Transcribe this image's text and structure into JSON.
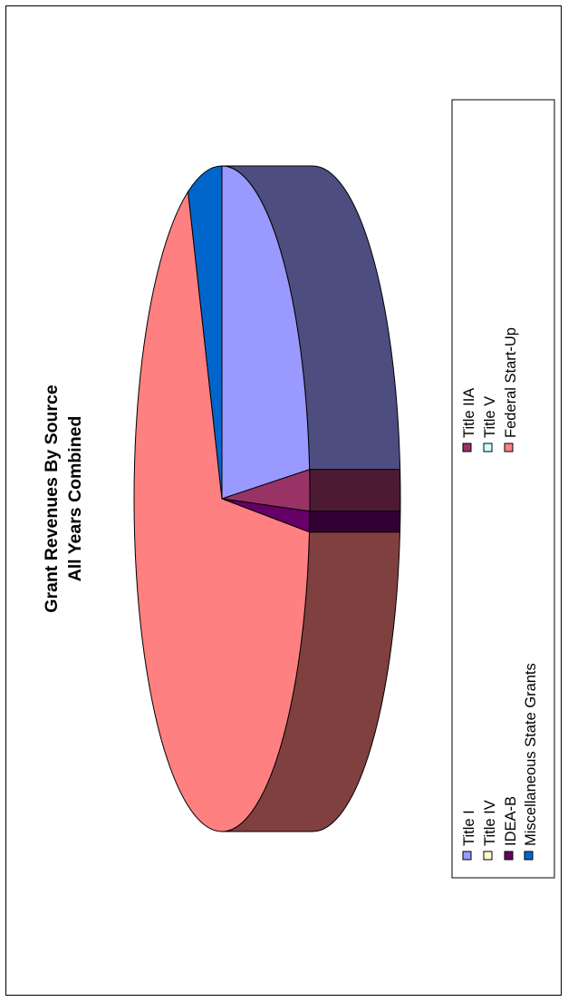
{
  "chart_data": {
    "type": "pie",
    "style": "3d",
    "title": "Grant Revenues By Source",
    "subtitle": "All Years Combined",
    "legend_position": "bottom",
    "categories": [
      "Title I",
      "Title IIA",
      "Title IV",
      "Title V",
      "IDEA-B",
      "Federal Start-Up",
      "Miscellaneous State Grants"
    ],
    "values": [
      23.6,
      2.0,
      0.0,
      0.0,
      1.0,
      67.1,
      6.3
    ],
    "unit": "percent of total",
    "colors": [
      "#9999ff",
      "#993366",
      "#ffffcc",
      "#ccffff",
      "#660066",
      "#ff8080",
      "#0066cc"
    ]
  }
}
